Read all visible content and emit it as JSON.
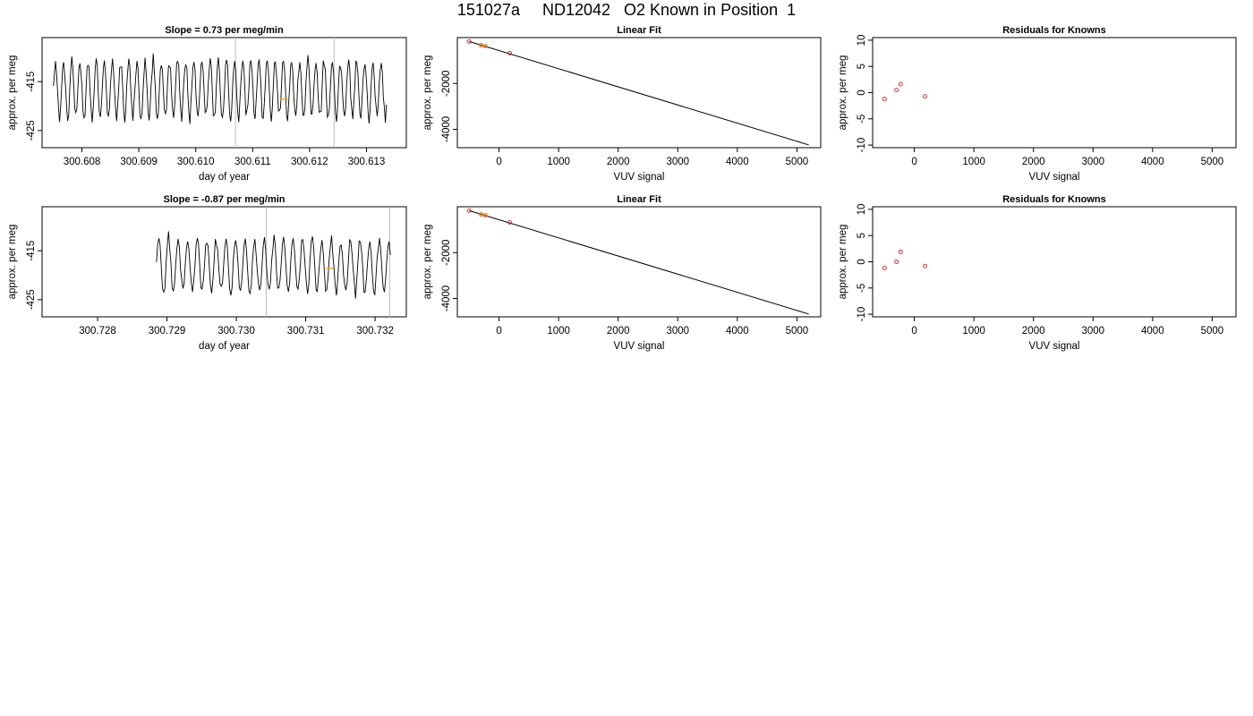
{
  "figure_title": "151027a     ND12042   O2 Known in Position  1",
  "colors": {
    "trace": "#000000",
    "marker_line": "#bebebe",
    "points_red": "#cc2222",
    "points_orange": "#f0a020",
    "fit_line": "#000000"
  },
  "chart_data": [
    {
      "id": "row1-timeseries",
      "type": "line",
      "title": "Slope =  0.73  per meg/min",
      "xlabel": "day of year",
      "ylabel": "approx. per meg",
      "xticks": [
        "300.608",
        "300.609",
        "300.610",
        "300.611",
        "300.612",
        "300.613"
      ],
      "xtick_values": [
        300.608,
        300.609,
        300.61,
        300.611,
        300.612,
        300.613
      ],
      "yticks": [
        "-415",
        "-425"
      ],
      "ytick_values": [
        -415,
        -425
      ],
      "xlim": [
        300.6073,
        300.6137
      ],
      "ylim": [
        -428.5,
        -406
      ],
      "series": [
        {
          "period_days": 0.000143,
          "mean": -416.5,
          "amp": 6.0,
          "start": 300.6075,
          "end": 300.61335,
          "seed": 11
        }
      ],
      "vlines": [
        300.6107,
        300.61243
      ],
      "highlight": {
        "x": 300.61155,
        "y": -418.6
      }
    },
    {
      "id": "row1-linearfit",
      "type": "scatter",
      "title": "Linear Fit",
      "xlabel": "VUV signal",
      "ylabel": "approx. per meg",
      "xticks": [
        "0",
        "1000",
        "2000",
        "3000",
        "4000",
        "5000"
      ],
      "xtick_values": [
        0,
        1000,
        2000,
        3000,
        4000,
        5000
      ],
      "yticks": [
        "-2000",
        "-4000"
      ],
      "ytick_values": [
        -2000,
        -4000
      ],
      "xlim": [
        -700,
        5400
      ],
      "ylim": [
        -4800,
        0
      ],
      "fit_line": {
        "x": [
          -500,
          5200
        ],
        "y": [
          -170,
          -4680
        ]
      },
      "points_red": {
        "x": [
          -500,
          -300,
          -230,
          180
        ],
        "y": [
          -170,
          -330,
          -370,
          -680
        ]
      },
      "points_orange": {
        "x": [
          -300,
          -230
        ],
        "y": [
          -325,
          -365
        ]
      }
    },
    {
      "id": "row1-residuals",
      "type": "scatter",
      "title": "Residuals for Knowns",
      "xlabel": "VUV signal",
      "ylabel": "approx. per meg",
      "xticks": [
        "0",
        "1000",
        "2000",
        "3000",
        "4000",
        "5000"
      ],
      "xtick_values": [
        0,
        1000,
        2000,
        3000,
        4000,
        5000
      ],
      "yticks": [
        "10",
        "5",
        "0",
        "-5",
        "-10"
      ],
      "ytick_values": [
        10,
        5,
        0,
        -5,
        -10
      ],
      "xlim": [
        -700,
        5400
      ],
      "ylim": [
        -10.5,
        10.5
      ],
      "points_red": {
        "x": [
          -500,
          -300,
          -230,
          180
        ],
        "y": [
          -1.2,
          0.5,
          1.6,
          -0.7
        ]
      }
    },
    {
      "id": "row2-timeseries",
      "type": "line",
      "title": "Slope =  -0.87  per meg/min",
      "xlabel": "day of year",
      "ylabel": "approx. per meg",
      "xticks": [
        "300.728",
        "300.729",
        "300.730",
        "300.731",
        "300.732"
      ],
      "xtick_values": [
        300.728,
        300.729,
        300.73,
        300.731,
        300.732
      ],
      "yticks": [
        "-415",
        "-425"
      ],
      "ytick_values": [
        -415,
        -425
      ],
      "xlim": [
        300.7272,
        300.73245
      ],
      "ylim": [
        -428.5,
        -406
      ],
      "series": [
        {
          "period_days": 0.000138,
          "mean": -418.0,
          "amp": 5.5,
          "start": 300.72885,
          "end": 300.73222,
          "seed": 23
        }
      ],
      "vlines": [
        300.73043,
        300.73221
      ],
      "highlight": {
        "x": 300.73135,
        "y": -418.6
      }
    },
    {
      "id": "row2-linearfit",
      "type": "scatter",
      "title": "Linear Fit",
      "xlabel": "VUV signal",
      "ylabel": "approx. per meg",
      "xticks": [
        "0",
        "1000",
        "2000",
        "3000",
        "4000",
        "5000"
      ],
      "xtick_values": [
        0,
        1000,
        2000,
        3000,
        4000,
        5000
      ],
      "yticks": [
        "-2000",
        "-4000"
      ],
      "ytick_values": [
        -2000,
        -4000
      ],
      "xlim": [
        -700,
        5400
      ],
      "ylim": [
        -4800,
        0
      ],
      "fit_line": {
        "x": [
          -500,
          5200
        ],
        "y": [
          -170,
          -4680
        ]
      },
      "points_red": {
        "x": [
          -500,
          -300,
          -230,
          180
        ],
        "y": [
          -170,
          -330,
          -370,
          -680
        ]
      },
      "points_orange": {
        "x": [
          -300,
          -230
        ],
        "y": [
          -325,
          -365
        ]
      }
    },
    {
      "id": "row2-residuals",
      "type": "scatter",
      "title": "Residuals for Knowns",
      "xlabel": "VUV signal",
      "ylabel": "approx. per meg",
      "xticks": [
        "0",
        "1000",
        "2000",
        "3000",
        "4000",
        "5000"
      ],
      "xtick_values": [
        0,
        1000,
        2000,
        3000,
        4000,
        5000
      ],
      "yticks": [
        "10",
        "5",
        "0",
        "-5",
        "-10"
      ],
      "ytick_values": [
        10,
        5,
        0,
        -5,
        -10
      ],
      "xlim": [
        -700,
        5400
      ],
      "ylim": [
        -10.5,
        10.5
      ],
      "points_red": {
        "x": [
          -500,
          -300,
          -230,
          180
        ],
        "y": [
          -1.2,
          0.0,
          1.9,
          -0.8
        ]
      }
    }
  ]
}
